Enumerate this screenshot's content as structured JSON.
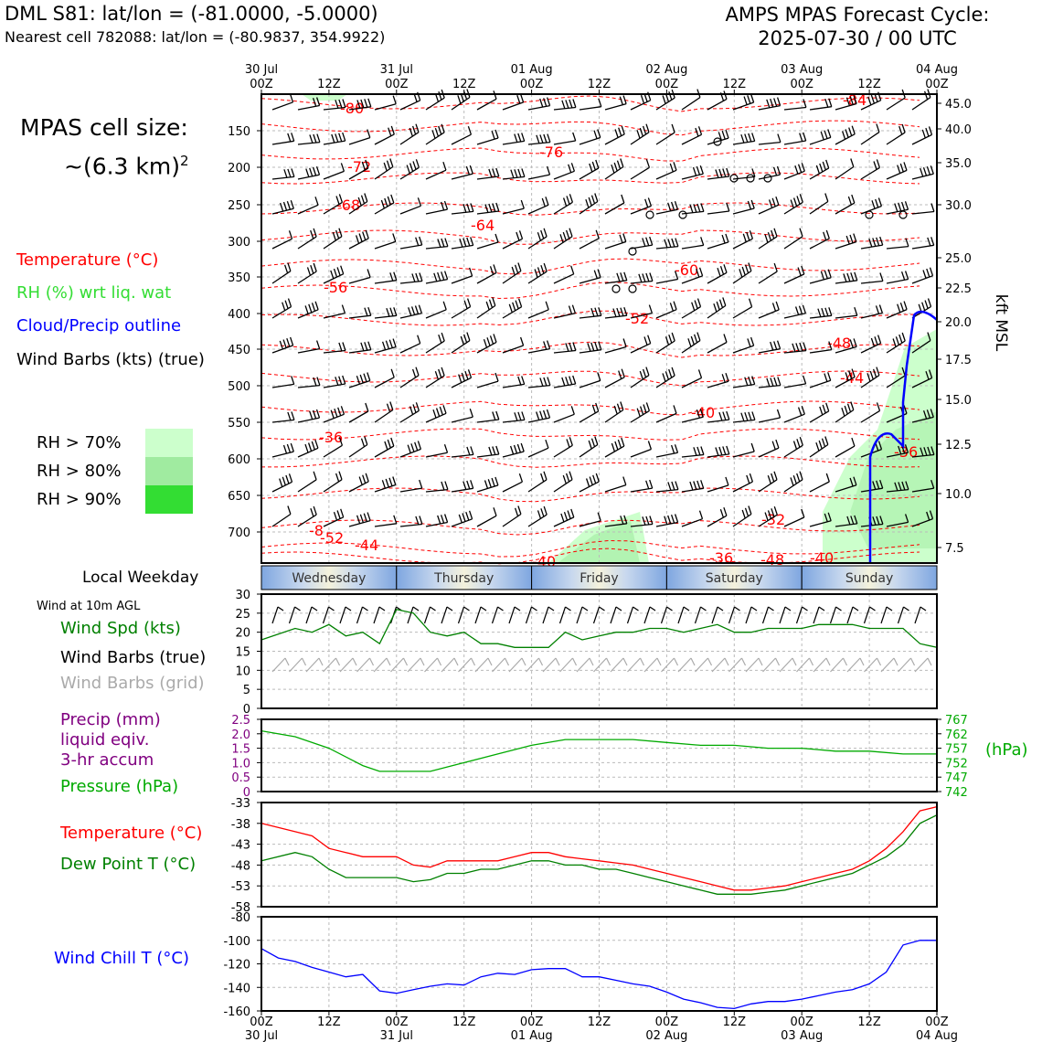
{
  "header": {
    "title_left": "DML S81: lat/lon = (-81.0000, -5.0000)",
    "subtitle_left": "Nearest cell 782088: lat/lon = (-80.9837, 354.9922)",
    "title_right_line1": "AMPS MPAS Forecast Cycle:",
    "title_right_line2": "2025-07-30 / 00 UTC"
  },
  "cell_size": {
    "line1": "MPAS cell size:",
    "line2": "~(6.3 km)",
    "sup": "2"
  },
  "legend": {
    "temperature": "Temperature (°C)",
    "rh": "RH (%) wrt liq. wat",
    "cloud": "Cloud/Precip outline",
    "barbs": "Wind Barbs (kts) (true)",
    "colors": {
      "temperature": "#ff0000",
      "rh": "#33dd33",
      "cloud": "#0000ff",
      "barbs": "#000000"
    }
  },
  "rh_legend": [
    {
      "label": "RH > 70%",
      "color": "#ccffcc"
    },
    {
      "label": "RH > 80%",
      "color": "#a0eba0"
    },
    {
      "label": "RH > 90%",
      "color": "#33dd33"
    }
  ],
  "weekday": {
    "label": "Local Weekday",
    "days": [
      "Wednesday",
      "Thursday",
      "Friday",
      "Saturday",
      "Sunday"
    ]
  },
  "wind_panel": {
    "caption": "Wind at 10m AGL",
    "spd_label": "Wind Spd (kts)",
    "barbs_true_label": "Wind Barbs (true)",
    "barbs_grid_label": "Wind Barbs (grid)"
  },
  "precip_panel": {
    "precip_line1": "Precip (mm)",
    "precip_line2": "liquid eqiv.",
    "precip_line3": "3-hr accum",
    "pressure_label": "Pressure (hPa)",
    "right_unit": "(hPa)"
  },
  "temp_panel": {
    "temp_label": "Temperature (°C)",
    "dew_label": "Dew Point T (°C)"
  },
  "chill_panel": {
    "label": "Wind Chill T (°C)"
  },
  "chart_data": [
    {
      "type": "heatmap",
      "name": "time-height cross section",
      "x_top_ticks": [
        {
          "top": "30 Jul",
          "bottom": "00Z"
        },
        {
          "top": "",
          "bottom": "12Z"
        },
        {
          "top": "31 Jul",
          "bottom": "00Z"
        },
        {
          "top": "",
          "bottom": "12Z"
        },
        {
          "top": "01 Aug",
          "bottom": "00Z"
        },
        {
          "top": "",
          "bottom": "12Z"
        },
        {
          "top": "02 Aug",
          "bottom": "00Z"
        },
        {
          "top": "",
          "bottom": "12Z"
        },
        {
          "top": "03 Aug",
          "bottom": "00Z"
        },
        {
          "top": "",
          "bottom": "12Z"
        },
        {
          "top": "04 Aug",
          "bottom": "00Z"
        }
      ],
      "y_left_hpa": [
        "150",
        "200",
        "250",
        "300",
        "350",
        "400",
        "450",
        "500",
        "550",
        "600",
        "650",
        "700"
      ],
      "y_right_kft": [
        "45.0",
        "40.0",
        "35.0",
        "30.0",
        "25.0",
        "22.5",
        "20.0",
        "17.5",
        "15.0",
        "12.5",
        "10.0",
        "7.5"
      ],
      "y_right_label": "kft MSL",
      "temperature_labels": [
        "-80",
        "-76",
        "-72",
        "-68",
        "-64",
        "-60",
        "-56",
        "-52",
        "-48",
        "-44",
        "-40",
        "-36",
        "-36",
        "-32",
        "-8",
        "-52",
        "-44",
        "-40",
        "-36",
        "-48",
        "-40",
        "-84"
      ]
    },
    {
      "type": "line",
      "name": "wind speed 10m",
      "x_hours": [
        0,
        6,
        9,
        12,
        15,
        18,
        21,
        24,
        27,
        30,
        33,
        36,
        39,
        42,
        45,
        48,
        51,
        54,
        57,
        60,
        63,
        66,
        69,
        72,
        75,
        78,
        81,
        84,
        87,
        90,
        93,
        96,
        99,
        102,
        105,
        108,
        111,
        114,
        117,
        120
      ],
      "y_kts": [
        18,
        21,
        20,
        22,
        19,
        20,
        17,
        26,
        25,
        20,
        19,
        20,
        17,
        17,
        16,
        16,
        16,
        20,
        18,
        19,
        20,
        20,
        21,
        21,
        20,
        21,
        22,
        20,
        20,
        21,
        21,
        21,
        22,
        22,
        22,
        21,
        21,
        21,
        17,
        16
      ],
      "ylim": [
        0,
        30
      ],
      "yticks": [
        "0",
        "5",
        "10",
        "15",
        "20",
        "25",
        "30"
      ],
      "color": "#008000"
    },
    {
      "type": "line",
      "name": "surface pressure",
      "x_hours": [
        0,
        6,
        12,
        18,
        21,
        24,
        30,
        36,
        42,
        48,
        54,
        60,
        66,
        72,
        78,
        84,
        90,
        96,
        102,
        108,
        114,
        120
      ],
      "y_hpa": [
        763,
        761,
        757,
        751,
        749,
        749,
        749,
        752,
        755,
        758,
        760,
        760,
        760,
        759,
        758,
        758,
        757,
        757,
        756,
        756,
        755,
        755
      ],
      "precip_yticks": [
        "0",
        "0.5",
        "1.0",
        "1.5",
        "2.0",
        "2.5"
      ],
      "pressure_yticks": [
        "742",
        "747",
        "752",
        "757",
        "762",
        "767"
      ],
      "ylim": [
        742,
        767
      ],
      "color": "#00aa00"
    },
    {
      "type": "line",
      "name": "temperature and dew point",
      "x_hours": [
        0,
        6,
        9,
        12,
        15,
        18,
        21,
        24,
        27,
        30,
        33,
        36,
        39,
        42,
        45,
        48,
        51,
        54,
        57,
        60,
        63,
        66,
        69,
        72,
        75,
        78,
        81,
        84,
        87,
        90,
        93,
        96,
        99,
        102,
        105,
        108,
        111,
        114,
        117,
        120
      ],
      "series": [
        {
          "name": "Temperature (°C)",
          "color": "#ff0000",
          "values": [
            -38,
            -40,
            -41,
            -44,
            -45,
            -46,
            -46,
            -46,
            -48,
            -48.5,
            -47,
            -47,
            -47,
            -47,
            -46,
            -45,
            -45,
            -46,
            -46.5,
            -47,
            -47.5,
            -48,
            -49,
            -50,
            -51,
            -52,
            -53,
            -54,
            -54,
            -53.5,
            -53,
            -52,
            -51,
            -50,
            -49,
            -47,
            -44,
            -40,
            -35,
            -34
          ]
        },
        {
          "name": "Dew Point T (°C)",
          "color": "#008000",
          "values": [
            -47,
            -45,
            -46,
            -49,
            -51,
            -51,
            -51,
            -51,
            -52,
            -51.5,
            -50,
            -50,
            -49,
            -49,
            -48,
            -47,
            -47,
            -48,
            -48,
            -49,
            -49,
            -50,
            -51,
            -52,
            -53,
            -54,
            -55,
            -55,
            -55,
            -54.5,
            -54,
            -53,
            -52,
            -51,
            -50,
            -48,
            -46,
            -43,
            -38,
            -36
          ]
        }
      ],
      "ylim": [
        -58,
        -33
      ],
      "yticks": [
        "-58",
        "-53",
        "-48",
        "-43",
        "-38",
        "-33"
      ]
    },
    {
      "type": "line",
      "name": "wind chill",
      "x_hours": [
        0,
        3,
        6,
        9,
        12,
        15,
        18,
        21,
        24,
        27,
        30,
        33,
        36,
        39,
        42,
        45,
        48,
        51,
        54,
        57,
        60,
        63,
        66,
        69,
        72,
        75,
        78,
        81,
        84,
        87,
        90,
        93,
        96,
        99,
        102,
        105,
        108,
        111,
        114,
        117,
        120
      ],
      "y_c": [
        -107,
        -115,
        -118,
        -123,
        -127,
        -131,
        -129,
        -143,
        -145,
        -142,
        -139,
        -137,
        -138,
        -131,
        -128,
        -129,
        -125,
        -124,
        -124,
        -131,
        -131,
        -134,
        -137,
        -139,
        -144,
        -150,
        -153,
        -157,
        -158,
        -154,
        -152,
        -152,
        -150,
        -147,
        -144,
        -142,
        -137,
        -127,
        -104,
        -100,
        -100
      ],
      "ylim": [
        -160,
        -80
      ],
      "yticks": [
        "-160",
        "-140",
        "-120",
        "-100",
        "-80"
      ],
      "color": "#0000ff"
    }
  ],
  "bottom_axis": {
    "ticks": [
      {
        "top": "00Z",
        "bottom": "30 Jul"
      },
      {
        "top": "12Z",
        "bottom": ""
      },
      {
        "top": "00Z",
        "bottom": "31 Jul"
      },
      {
        "top": "12Z",
        "bottom": ""
      },
      {
        "top": "00Z",
        "bottom": "01 Aug"
      },
      {
        "top": "12Z",
        "bottom": ""
      },
      {
        "top": "00Z",
        "bottom": "02 Aug"
      },
      {
        "top": "12Z",
        "bottom": ""
      },
      {
        "top": "00Z",
        "bottom": "03 Aug"
      },
      {
        "top": "12Z",
        "bottom": ""
      },
      {
        "top": "00Z",
        "bottom": "04 Aug"
      }
    ]
  }
}
